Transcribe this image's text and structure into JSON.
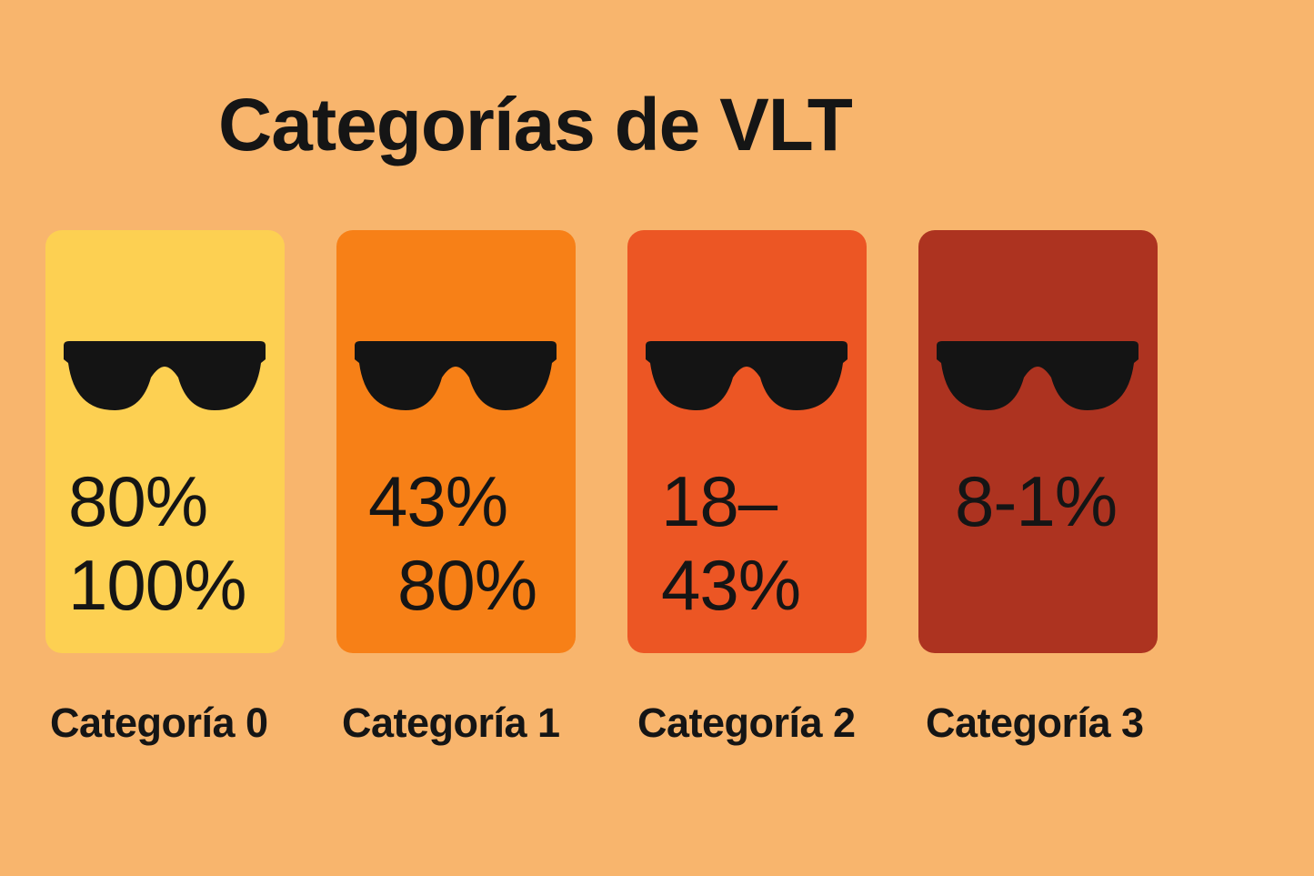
{
  "title": "Categorías de VLT",
  "colors": {
    "background": "#f8b56d",
    "text": "#151515",
    "icon": "#141414"
  },
  "categories": [
    {
      "name": "Categoría 0",
      "vlt_lines": [
        "80%",
        "100%"
      ],
      "color": "#fdd052",
      "icon": "sunglasses-icon"
    },
    {
      "name": "Categoría 1",
      "vlt_lines": [
        "43%",
        "80%"
      ],
      "color": "#f78017",
      "icon": "sunglasses-icon"
    },
    {
      "name": "Categoría 2",
      "vlt_lines": [
        "18–",
        "43%"
      ],
      "color": "#ec5624",
      "icon": "sunglasses-icon"
    },
    {
      "name": "Categoría 3",
      "vlt_lines": [
        "8-1%"
      ],
      "color": "#ad3320",
      "icon": "sunglasses-icon"
    }
  ]
}
